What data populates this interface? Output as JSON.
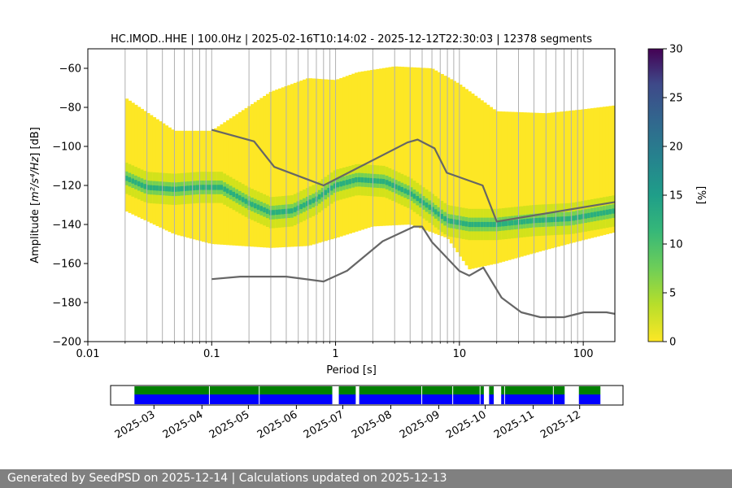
{
  "chart_data": [
    {
      "type": "heatmap",
      "title": "HC.IMOD..HHE | 100.0Hz | 2025-02-16T10:14:02 - 2025-12-12T22:30:03 | 12378 segments",
      "xlabel": "Period [s]",
      "ylabel_prefix": "Amplitude [",
      "ylabel_math": "m²/s⁴/Hz",
      "ylabel_suffix": "] [dB]",
      "x_scale": "log",
      "xlim": [
        0.01,
        180
      ],
      "ylim": [
        -200,
        -50
      ],
      "grid": "vertical lines at each log decade step",
      "x_tick_values": [
        0.01,
        0.1,
        1,
        10,
        100
      ],
      "x_tick_labels": [
        "0.01",
        "0.1",
        "1",
        "10",
        "100"
      ],
      "y_tick_values": [
        -200,
        -180,
        -160,
        -140,
        -120,
        -100,
        -80,
        -60
      ],
      "y_tick_labels": [
        "−200",
        "−180",
        "−160",
        "−140",
        "−120",
        "−100",
        "−80",
        "−60"
      ],
      "colorbar": {
        "label": "[%]",
        "range": [
          0,
          30
        ],
        "ticks": [
          0,
          5,
          10,
          15,
          20,
          25,
          30
        ],
        "tick_labels": [
          "0",
          "5",
          "10",
          "15",
          "20",
          "25",
          "30"
        ],
        "colormap": "viridis (reversed: 0 = yellow, 30 = purple)"
      },
      "density_mode": {
        "period": [
          0.02,
          0.03,
          0.05,
          0.08,
          0.12,
          0.2,
          0.3,
          0.45,
          0.7,
          1.0,
          1.5,
          2.5,
          4,
          6,
          8,
          12,
          20,
          40,
          80,
          180
        ],
        "amplitude": [
          -116,
          -121,
          -122,
          -121,
          -121,
          -129,
          -134,
          -133,
          -127,
          -120,
          -117,
          -118,
          -124,
          -132,
          -138,
          -140,
          -140,
          -138,
          -137,
          -133
        ]
      },
      "density_upper_edge": {
        "period": [
          0.02,
          0.05,
          0.1,
          0.3,
          0.6,
          1.0,
          1.5,
          3,
          6,
          10,
          20,
          50,
          100,
          180
        ],
        "amplitude": [
          -75,
          -92,
          -92,
          -72,
          -65,
          -66,
          -62,
          -59,
          -60,
          -68,
          -82,
          -83,
          -81,
          -79
        ]
      },
      "density_lower_edge": {
        "period": [
          0.02,
          0.05,
          0.1,
          0.3,
          0.6,
          1.0,
          2,
          4,
          8,
          12,
          20,
          50,
          100,
          180
        ],
        "amplitude": [
          -133,
          -145,
          -150,
          -152,
          -151,
          -147,
          -141,
          -140,
          -147,
          -163,
          -160,
          -153,
          -148,
          -144
        ]
      },
      "series": [
        {
          "model": "high noise model",
          "period": [
            0.1,
            0.22,
            0.32,
            0.8,
            3.8,
            4.6,
            6.3,
            7.9,
            15.4,
            20,
            180
          ],
          "amplitude": [
            -91.5,
            -97.4,
            -110.5,
            -120,
            -98,
            -96.5,
            -101,
            -113.5,
            -120,
            -138.5,
            -128.5
          ]
        },
        {
          "model": "low noise model",
          "period": [
            0.1,
            0.17,
            0.4,
            0.8,
            1.24,
            2.4,
            4.3,
            5,
            6,
            10,
            12,
            15.6,
            21.9,
            31.6,
            45,
            70,
            101,
            154,
            180
          ],
          "amplitude": [
            -168,
            -166.7,
            -166.7,
            -169.2,
            -163.7,
            -148.6,
            -141.1,
            -141.1,
            -149,
            -163.8,
            -166.2,
            -162.1,
            -177.5,
            -185,
            -187.5,
            -187.5,
            -185,
            -185,
            -185.8
          ]
        }
      ]
    },
    {
      "type": "timeline",
      "x_tick_labels": [
        "2025-03",
        "2025-04",
        "2025-05",
        "2025-06",
        "2025-07",
        "2025-08",
        "2025-09",
        "2025-10",
        "2025-11",
        "2025-12"
      ],
      "x_tick_days": [
        28,
        59,
        89,
        120,
        150,
        181,
        212,
        242,
        273,
        303
      ],
      "span_days": [
        0,
        331
      ],
      "row_colors": [
        "#008000",
        "#0000ff"
      ],
      "data_intervals_days": [
        [
          15.4,
          143.2
        ],
        [
          147.4,
          158.5
        ],
        [
          160.6,
          238.4
        ],
        [
          238.9,
          241.1
        ],
        [
          244.5,
          247.5
        ],
        [
          252.3,
          293.3
        ],
        [
          302.5,
          316.4
        ]
      ],
      "marker_days": [
        63.8,
        96,
        143.6,
        158.6,
        159.9,
        201,
        221,
        254.5,
        286,
        302.1
      ]
    }
  ],
  "colors": {
    "heat_low": "#fde725",
    "heat_mid": "#75d054",
    "heat_high": "#29af7f",
    "model_line": "#666666",
    "grid": "#b0b0b0",
    "footer_bg": "#808080"
  },
  "footer": {
    "text": "Generated by SeedPSD on 2025-12-14 | Calculations updated on 2025-12-13"
  }
}
